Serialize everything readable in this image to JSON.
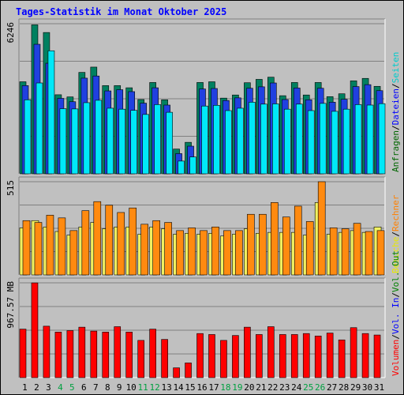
{
  "chart_data": [
    {
      "type": "bar",
      "title": "Tages-Statistik im Monat Oktober 2025",
      "ymax_label": "6246",
      "categories": [
        "1",
        "2",
        "3",
        "4",
        "5",
        "6",
        "7",
        "8",
        "9",
        "10",
        "11",
        "12",
        "13",
        "14",
        "15",
        "16",
        "17",
        "18",
        "19",
        "20",
        "21",
        "22",
        "23",
        "24",
        "25",
        "26",
        "27",
        "28",
        "29",
        "30",
        "31"
      ],
      "legend": [
        {
          "key": "anfragen",
          "label": "Anfragen",
          "color": "#006600"
        },
        {
          "key": "dateien",
          "label": "Dateien",
          "color": "#0000ff"
        },
        {
          "key": "seiten",
          "label": "Seiten",
          "color": "#00cccc"
        }
      ],
      "legend_separator": "/",
      "ylim": [
        0,
        6246
      ],
      "series": [
        {
          "name": "Anfragen",
          "color": "#008060",
          "values": [
            3830,
            6200,
            5880,
            3290,
            3200,
            4220,
            4440,
            3670,
            3670,
            3580,
            3090,
            3800,
            3080,
            1030,
            1310,
            3800,
            3830,
            3150,
            3280,
            3790,
            3930,
            4020,
            3250,
            3800,
            3280,
            3800,
            3210,
            3330,
            3870,
            3970,
            3640
          ]
        },
        {
          "name": "Dateien",
          "color": "#2040e0",
          "values": [
            3670,
            5390,
            4600,
            3140,
            3000,
            3980,
            4070,
            3450,
            3500,
            3420,
            2940,
            3580,
            2860,
            840,
            1150,
            3530,
            3550,
            3050,
            3160,
            3560,
            3620,
            3780,
            3090,
            3570,
            3080,
            3560,
            2980,
            3100,
            3630,
            3710,
            3460
          ]
        },
        {
          "name": "Seiten",
          "color": "#00e8f8",
          "values": [
            3080,
            3780,
            5120,
            2710,
            2700,
            2960,
            3060,
            2730,
            2690,
            2640,
            2470,
            2880,
            2560,
            530,
            700,
            2820,
            2850,
            2630,
            2730,
            2980,
            2900,
            2910,
            2690,
            2900,
            2630,
            2930,
            2600,
            2690,
            2880,
            2860,
            2920
          ]
        }
      ]
    },
    {
      "type": "bar",
      "ymax_label": "515",
      "categories": [
        "1",
        "2",
        "3",
        "4",
        "5",
        "6",
        "7",
        "8",
        "9",
        "10",
        "11",
        "12",
        "13",
        "14",
        "15",
        "16",
        "17",
        "18",
        "19",
        "20",
        "21",
        "22",
        "23",
        "24",
        "25",
        "26",
        "27",
        "28",
        "29",
        "30",
        "31"
      ],
      "legend": [
        {
          "key": "besuche",
          "label": "Besuche",
          "color": "#e8e800"
        },
        {
          "key": "rechner",
          "label": "Rechner",
          "color": "#ff8000"
        }
      ],
      "legend_separator": "/",
      "ylim": [
        0,
        515
      ],
      "series": [
        {
          "name": "Besuche",
          "color": "#f0f060",
          "values": [
            260,
            300,
            265,
            240,
            220,
            265,
            290,
            255,
            265,
            265,
            225,
            265,
            255,
            225,
            230,
            225,
            230,
            215,
            225,
            255,
            230,
            235,
            235,
            235,
            220,
            400,
            225,
            235,
            245,
            235,
            265
          ]
        },
        {
          "name": "Rechner",
          "color": "#ff8a10",
          "values": [
            300,
            290,
            330,
            315,
            245,
            355,
            405,
            385,
            345,
            370,
            280,
            300,
            290,
            245,
            260,
            245,
            265,
            245,
            245,
            335,
            335,
            400,
            320,
            380,
            295,
            515,
            260,
            255,
            285,
            240,
            245
          ]
        }
      ]
    },
    {
      "type": "bar",
      "ymax_label": "967.57 MB",
      "categories": [
        "1",
        "2",
        "3",
        "4",
        "5",
        "6",
        "7",
        "8",
        "9",
        "10",
        "11",
        "12",
        "13",
        "14",
        "15",
        "16",
        "17",
        "18",
        "19",
        "20",
        "21",
        "22",
        "23",
        "24",
        "25",
        "26",
        "27",
        "28",
        "29",
        "30",
        "31"
      ],
      "weekend_days": [
        "4",
        "5",
        "11",
        "12",
        "18",
        "19",
        "25",
        "26"
      ],
      "legend": [
        {
          "key": "volumen",
          "label": "Volumen",
          "color": "#ff0000"
        },
        {
          "key": "vol_in",
          "label": "Vol. In",
          "color": "#0000ff"
        },
        {
          "key": "vol_out",
          "label": "Vol. Out",
          "color": "#008000"
        }
      ],
      "legend_separator": "/",
      "ylim": [
        0,
        967.57
      ],
      "series": [
        {
          "name": "Volumen",
          "color": "#ff0000",
          "values": [
            495,
            967,
            525,
            465,
            480,
            515,
            475,
            465,
            520,
            465,
            380,
            495,
            390,
            100,
            150,
            450,
            440,
            380,
            430,
            515,
            440,
            520,
            440,
            440,
            450,
            425,
            455,
            385,
            510,
            450,
            435
          ]
        }
      ]
    }
  ]
}
